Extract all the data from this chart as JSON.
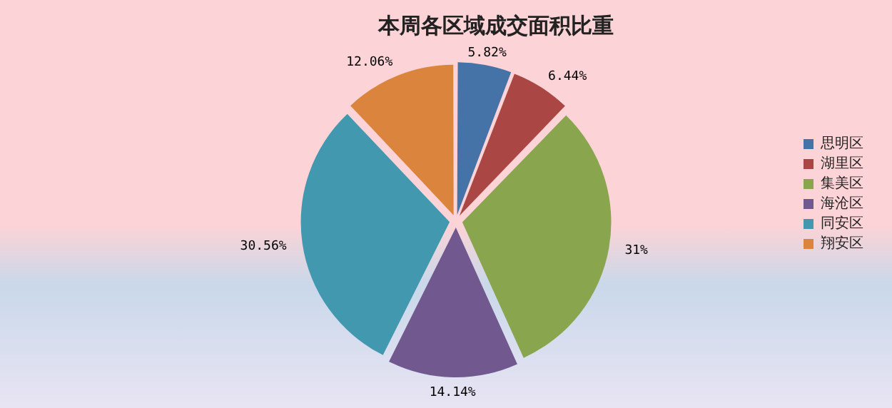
{
  "chart_data": {
    "type": "pie",
    "title": "本周各区域成交面积比重",
    "categories": [
      "思明区",
      "湖里区",
      "集美区",
      "海沧区",
      "同安区",
      "翔安区"
    ],
    "values": [
      5.82,
      6.44,
      31,
      14.14,
      30.56,
      12.06
    ],
    "value_labels": [
      "5.82%",
      "6.44%",
      "31%",
      "14.14%",
      "30.56%",
      "12.06%"
    ],
    "colors": [
      "#4572a7",
      "#aa4643",
      "#89a54e",
      "#71588f",
      "#4198af",
      "#db843d"
    ],
    "legend": "right"
  }
}
